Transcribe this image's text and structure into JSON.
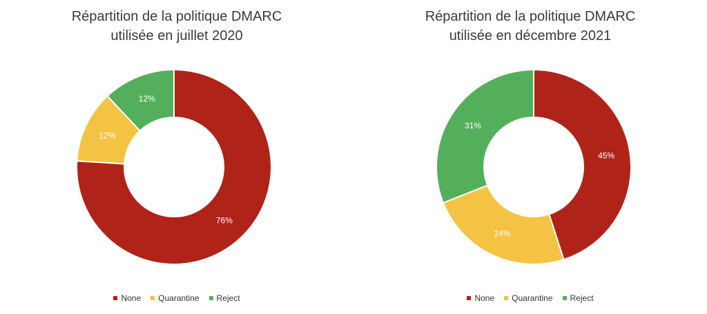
{
  "chart_data": [
    {
      "type": "pie",
      "title_line1": "Répartition de la politique DMARC",
      "title_line2": "utilisée en juillet 2020",
      "categories": [
        "None",
        "Quarantine",
        "Reject"
      ],
      "values": [
        76,
        12,
        12
      ],
      "labels": [
        "76%",
        "12%",
        "12%"
      ],
      "colors": [
        "#b02318",
        "#f5c344",
        "#54af5c"
      ],
      "legend": "bottom"
    },
    {
      "type": "pie",
      "title_line1": "Répartition de la politique DMARC",
      "title_line2": "utilisée en décembre 2021",
      "categories": [
        "None",
        "Quarantine",
        "Reject"
      ],
      "values": [
        45,
        24,
        31
      ],
      "labels": [
        "45%",
        "24%",
        "31%"
      ],
      "colors": [
        "#b02318",
        "#f5c344",
        "#54af5c"
      ],
      "legend": "bottom"
    }
  ]
}
